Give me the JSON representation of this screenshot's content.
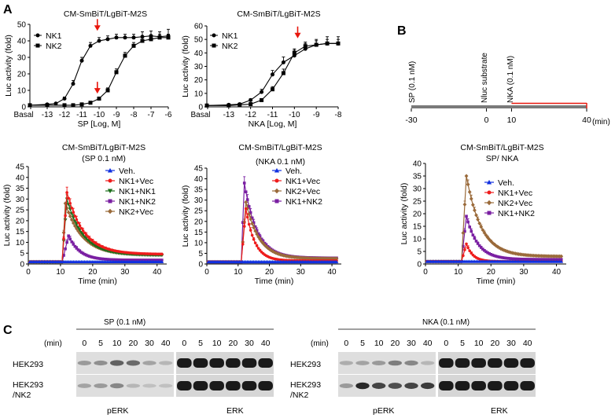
{
  "panel_labels": {
    "a": "A",
    "b": "B",
    "c": "C"
  },
  "chart_data": [
    {
      "id": "a1",
      "type": "line",
      "title": "CM-SmBiT/LgBiT-M2S",
      "xlabel": "SP [Log, M]",
      "ylabel": "Luc activity (fold)",
      "xlim": [
        -14,
        -6
      ],
      "ylim": [
        0,
        50
      ],
      "xticks": [
        -13,
        -12,
        -11,
        -10,
        -9,
        -8,
        -7,
        -6
      ],
      "xtick_labels": [
        "-13",
        "-12",
        "-11",
        "-10",
        "-9",
        "-8",
        "-7",
        "-6"
      ],
      "basal_label": "Basal",
      "yticks": [
        0,
        10,
        20,
        30,
        40,
        50
      ],
      "legend_pos": "top-left",
      "arrows": [
        {
          "x": -10.1,
          "y": 47
        },
        {
          "x": -10.1,
          "y": 9
        }
      ],
      "series": [
        {
          "name": "NK1",
          "marker": "circle",
          "x": [
            -14,
            -13,
            -12.5,
            -12,
            -11.5,
            -11,
            -10.5,
            -10,
            -9.5,
            -9,
            -8.5,
            -8,
            -7.5,
            -7,
            -6.5,
            -6
          ],
          "y": [
            1,
            1.5,
            2,
            5,
            14,
            28,
            37,
            40,
            41,
            42,
            42,
            42,
            42.5,
            43,
            42.5,
            43
          ],
          "err": [
            0,
            0.5,
            0.5,
            1,
            2,
            2,
            2,
            2,
            2,
            2,
            2,
            2,
            3,
            3,
            3,
            4
          ]
        },
        {
          "name": "NK2",
          "marker": "square",
          "x": [
            -14,
            -13,
            -12,
            -11.5,
            -11,
            -10.5,
            -10,
            -9.5,
            -9,
            -8.5,
            -8,
            -7.5,
            -7,
            -6.5,
            -6
          ],
          "y": [
            1,
            1,
            1,
            1,
            1.5,
            2.5,
            5,
            10,
            21,
            31,
            37,
            40,
            41,
            42,
            42
          ],
          "err": [
            0,
            0,
            0,
            0,
            0.5,
            0.5,
            1,
            1.5,
            2,
            2,
            2,
            2,
            2,
            2,
            2
          ]
        }
      ]
    },
    {
      "id": "a2",
      "type": "line",
      "title": "CM-SmBiT/LgBiT-M2S",
      "xlabel": "NKA [Log, M]",
      "ylabel": "Luc activity (fold)",
      "xlim": [
        -14,
        -8
      ],
      "ylim": [
        0,
        60
      ],
      "xticks": [
        -13,
        -12,
        -11,
        -10,
        -9,
        -8
      ],
      "xtick_labels": [
        "-13",
        "-12",
        "-11",
        "-10",
        "-9",
        "-8"
      ],
      "basal_label": "Basal",
      "yticks": [
        0,
        10,
        20,
        30,
        40,
        50,
        60
      ],
      "legend_pos": "top-left",
      "arrows": [
        {
          "x": -9.85,
          "y": 52
        }
      ],
      "series": [
        {
          "name": "NK1",
          "marker": "circle",
          "x": [
            -14,
            -13,
            -12.5,
            -12,
            -11.5,
            -11,
            -10.5,
            -10,
            -9.5,
            -9,
            -8.5,
            -8
          ],
          "y": [
            1,
            1.5,
            2,
            5,
            11,
            24,
            33,
            38,
            43,
            46,
            47,
            47
          ],
          "err": [
            0,
            0.5,
            0.5,
            1,
            2,
            3,
            4,
            4,
            4,
            4,
            5,
            5
          ]
        },
        {
          "name": "NK2",
          "marker": "square",
          "x": [
            -14,
            -13,
            -12.5,
            -12,
            -11.5,
            -11,
            -10.5,
            -10,
            -9.5,
            -9,
            -8.5,
            -8
          ],
          "y": [
            1,
            1,
            1.5,
            2,
            5,
            13,
            25,
            40,
            45,
            46,
            47,
            47
          ],
          "err": [
            0,
            0,
            0.5,
            0.5,
            1,
            2,
            3,
            3,
            3,
            3,
            3,
            3
          ]
        }
      ]
    },
    {
      "id": "a3",
      "type": "line",
      "title": "CM-SmBiT/LgBiT-M2S",
      "subtitle": "(SP 0.1 nM)",
      "xlabel": "Time (min)",
      "ylabel": "Luc activity (fold)",
      "xlim": [
        0,
        43
      ],
      "ylim": [
        0,
        45
      ],
      "xticks": [
        0,
        10,
        20,
        30,
        40
      ],
      "yticks": [
        0,
        5,
        10,
        15,
        20,
        25,
        30,
        35,
        40,
        45
      ],
      "legend_pos": "top-right",
      "series": [
        {
          "name": "Veh.",
          "color": "#1030e0",
          "marker": "triangle-up",
          "peak": 1,
          "base": 1,
          "onset": 11,
          "tpeak": 11,
          "tau": 1,
          "tail": 0
        },
        {
          "name": "NK1+Vec",
          "color": "#ee1c1c",
          "marker": "circle",
          "peak": 33,
          "base": 1,
          "onset": 10.5,
          "tpeak": 12,
          "tau": 5.2,
          "tail": 3.5,
          "err": 2.5
        },
        {
          "name": "NK1+NK1",
          "color": "#1a6e1a",
          "marker": "triangle-down",
          "peak": 30,
          "base": 1,
          "onset": 10.5,
          "tpeak": 12,
          "tau": 5.0,
          "tail": 3,
          "err": 2
        },
        {
          "name": "NK1+NK2",
          "color": "#7a1fa2",
          "marker": "square",
          "peak": 13,
          "base": 1,
          "onset": 10.5,
          "tpeak": 12.5,
          "tau": 3.5,
          "tail": 0.8,
          "err": 1.5
        },
        {
          "name": "NK2+Vec",
          "color": "#9a6a3a",
          "marker": "diamond",
          "peak": 28,
          "base": 1,
          "onset": 10.5,
          "tpeak": 11.5,
          "tau": 5.2,
          "tail": 3.2,
          "err": 2
        }
      ]
    },
    {
      "id": "a4",
      "type": "line",
      "title": "CM-SmBiT/LgBiT-M2S",
      "subtitle": "(NKA 0.1 nM)",
      "xlabel": "Time (min)",
      "ylabel": "Luc activity (fold)",
      "xlim": [
        0,
        43
      ],
      "ylim": [
        0,
        45
      ],
      "xticks": [
        0,
        10,
        20,
        30,
        40
      ],
      "yticks": [
        0,
        5,
        10,
        15,
        20,
        25,
        30,
        35,
        40,
        45
      ],
      "legend_pos": "top-right",
      "series": [
        {
          "name": "Veh.",
          "color": "#1030e0",
          "marker": "triangle-up",
          "peak": 1,
          "base": 1,
          "onset": 11,
          "tpeak": 11,
          "tau": 1,
          "tail": 0
        },
        {
          "name": "NK1+Vec",
          "color": "#ee1c1c",
          "marker": "circle",
          "peak": 26,
          "base": 1,
          "onset": 11,
          "tpeak": 12.5,
          "tau": 2.8,
          "tail": 0.5,
          "err": 2
        },
        {
          "name": "NK2+Vec",
          "color": "#9a6a3a",
          "marker": "diamond",
          "peak": 29,
          "base": 1,
          "onset": 11,
          "tpeak": 12.5,
          "tau": 4.2,
          "tail": 1.5,
          "err": 2
        },
        {
          "name": "NK1+NK2",
          "color": "#7a1fa2",
          "marker": "square",
          "peak": 38,
          "base": 1,
          "onset": 11,
          "tpeak": 12,
          "tau": 4.0,
          "tail": 1.8,
          "err": 3
        }
      ]
    },
    {
      "id": "b2",
      "type": "line",
      "title": "CM-SmBiT/LgBiT-M2S",
      "subtitle": "SP/ NKA",
      "xlabel": "Time (min)",
      "ylabel": "Luc activity (fold)",
      "xlim": [
        0,
        43
      ],
      "ylim": [
        0,
        40
      ],
      "xticks": [
        0,
        10,
        20,
        30,
        40
      ],
      "yticks": [
        0,
        5,
        10,
        15,
        20,
        25,
        30,
        35,
        40
      ],
      "legend_pos": "top-right",
      "series": [
        {
          "name": "Veh.",
          "color": "#1030e0",
          "marker": "triangle-up",
          "peak": 1,
          "base": 1,
          "onset": 11,
          "tpeak": 11,
          "tau": 1,
          "tail": 0
        },
        {
          "name": "NK1+Vec",
          "color": "#ee1c1c",
          "marker": "circle",
          "peak": 8,
          "base": 1,
          "onset": 11,
          "tpeak": 12.5,
          "tau": 2.0,
          "tail": 0,
          "err": 1
        },
        {
          "name": "NK2+Vec",
          "color": "#9a6a3a",
          "marker": "diamond",
          "peak": 35,
          "base": 1,
          "onset": 11,
          "tpeak": 12.5,
          "tau": 4.5,
          "tail": 2,
          "err": 2
        },
        {
          "name": "NK1+NK2",
          "color": "#7a1fa2",
          "marker": "square",
          "peak": 19,
          "base": 1,
          "onset": 11,
          "tpeak": 12.5,
          "tau": 3.5,
          "tail": 0.8,
          "err": 1.5
        }
      ]
    }
  ],
  "timeline": {
    "xlabel": "(min)",
    "ticks": [
      -30,
      0,
      10,
      40
    ],
    "events": [
      {
        "t": -30,
        "label": "SP (0.1 nM)"
      },
      {
        "t": 0,
        "label": "Nluc substrate"
      },
      {
        "t": 10,
        "label": "NKA (0.1 nM)"
      }
    ],
    "red_segment": [
      10,
      40
    ]
  },
  "blots": {
    "left": {
      "header": "SP (0.1 nM)",
      "min_label": "(min)",
      "times": [
        "0",
        "5",
        "10",
        "20",
        "30",
        "40"
      ],
      "row_labels": [
        "HEK293",
        "HEK293\n/NK2"
      ],
      "row1_label": "HEK293",
      "row2_label_a": "HEK293",
      "row2_label_b": "/NK2",
      "footer_left": "pERK",
      "footer_right": "ERK",
      "perk": [
        [
          0.35,
          0.4,
          0.65,
          0.6,
          0.3,
          0.2
        ],
        [
          0.3,
          0.35,
          0.45,
          0.2,
          0.15,
          0.15
        ]
      ],
      "erk": [
        [
          1,
          1,
          1,
          1,
          1,
          1
        ],
        [
          1,
          1,
          1,
          1,
          1,
          1
        ]
      ]
    },
    "right": {
      "header": "NKA (0.1 nM)",
      "min_label": "(min)",
      "times": [
        "0",
        "5",
        "10",
        "20",
        "30",
        "40"
      ],
      "row1_label": "HEK293",
      "row2_label_a": "HEK293",
      "row2_label_b": "/NK2",
      "footer_left": "pERK",
      "footer_right": "ERK",
      "perk": [
        [
          0.25,
          0.3,
          0.35,
          0.5,
          0.45,
          0.2
        ],
        [
          0.35,
          0.95,
          0.8,
          0.75,
          0.8,
          0.85
        ]
      ],
      "erk": [
        [
          1,
          1,
          1,
          1,
          1,
          1
        ],
        [
          1,
          1,
          1,
          1,
          1,
          1
        ]
      ]
    }
  }
}
